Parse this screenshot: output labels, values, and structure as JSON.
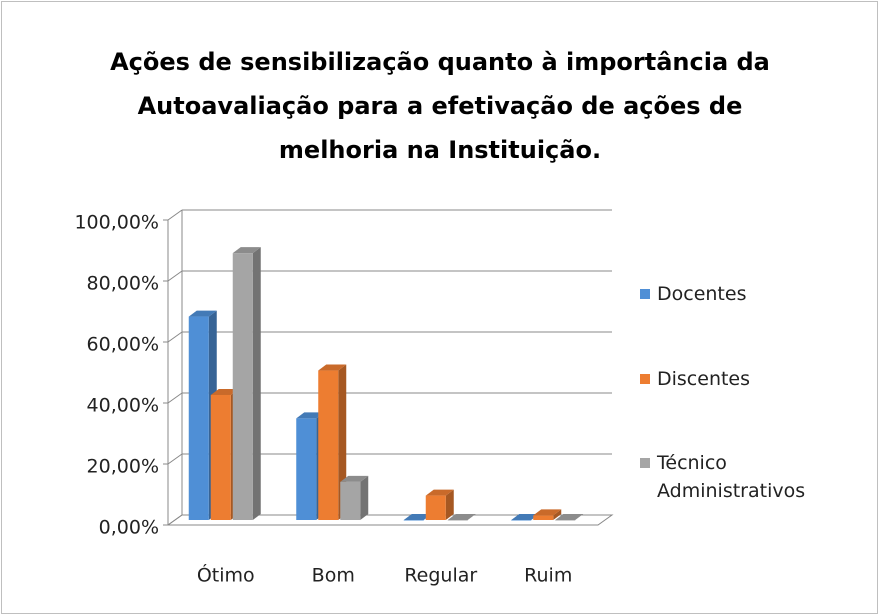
{
  "chart_data": {
    "type": "bar3d",
    "title": "Ações de sensibilização quanto à importância da Autoavaliação para a efetivação de ações de melhoria na Instituição.",
    "categories": [
      "Ótimo",
      "Bom",
      "Regular",
      "Ruim"
    ],
    "series": [
      {
        "name": "Docentes",
        "color": "#4f8fd6",
        "values": [
          66.7,
          33.3,
          0,
          0
        ]
      },
      {
        "name": "Discentes",
        "color": "#ed7d31",
        "values": [
          41,
          49,
          8,
          1.5
        ]
      },
      {
        "name": "Técnico Administrativos",
        "color": "#a5a5a5",
        "values": [
          87.5,
          12.5,
          0,
          0
        ]
      }
    ],
    "ylim": [
      0,
      100
    ],
    "yticks": [
      {
        "value": 0,
        "label": "0,00%"
      },
      {
        "value": 20,
        "label": "20,00%"
      },
      {
        "value": 40,
        "label": "40,00%"
      },
      {
        "value": 60,
        "label": "60,00%"
      },
      {
        "value": 80,
        "label": "80,00%"
      },
      {
        "value": 100,
        "label": "100,00%"
      }
    ],
    "grid": true,
    "legend": "right"
  }
}
